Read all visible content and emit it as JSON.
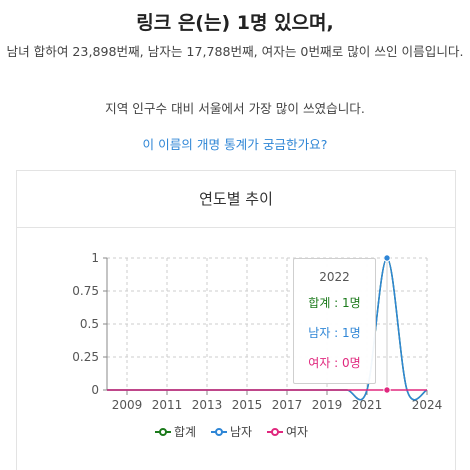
{
  "header": {
    "title": "링크 은(는) 1명 있으며,",
    "description": "남녀 합하여 23,898번째, 남자는 17,788번째, 여자는 0번째로 많이 쓰인 이름입니다.",
    "region_text": "지역 인구수 대비 서울에서 가장 많이 쓰였습니다.",
    "stats_link": "이 이름의 개명 통계가 궁금한가요?"
  },
  "card": {
    "title": "연도별 추이"
  },
  "tooltip": {
    "year": "2022",
    "total": "합계 : 1명",
    "male": "남자 : 1명",
    "female": "여자 : 0명"
  },
  "legend": {
    "total": "합계",
    "male": "남자",
    "female": "여자"
  },
  "colors": {
    "total": "#1b7a1b",
    "male": "#2f86d6",
    "female": "#e0287e",
    "link": "#2f86d6"
  },
  "chart_data": {
    "type": "line",
    "x": [
      2008,
      2009,
      2010,
      2011,
      2012,
      2013,
      2014,
      2015,
      2016,
      2017,
      2018,
      2019,
      2020,
      2021,
      2022,
      2023,
      2024
    ],
    "series": [
      {
        "name": "합계",
        "values": [
          0,
          0,
          0,
          0,
          0,
          0,
          0,
          0,
          0,
          0,
          0,
          0,
          0,
          0,
          1,
          0,
          0
        ]
      },
      {
        "name": "남자",
        "values": [
          0,
          0,
          0,
          0,
          0,
          0,
          0,
          0,
          0,
          0,
          0,
          0,
          0,
          0,
          1,
          0,
          0
        ]
      },
      {
        "name": "여자",
        "values": [
          0,
          0,
          0,
          0,
          0,
          0,
          0,
          0,
          0,
          0,
          0,
          0,
          0,
          0,
          0,
          0,
          0
        ]
      }
    ],
    "x_ticks": [
      "2009",
      "2011",
      "2013",
      "2015",
      "2017",
      "2019",
      "2021",
      "2024"
    ],
    "y_ticks": [
      "0",
      "0.25",
      "0.5",
      "0.75",
      "1"
    ],
    "xlim": [
      2008,
      2024
    ],
    "ylim": [
      0,
      1
    ],
    "grid": true,
    "legend_position": "bottom",
    "highlight_x": 2022
  }
}
